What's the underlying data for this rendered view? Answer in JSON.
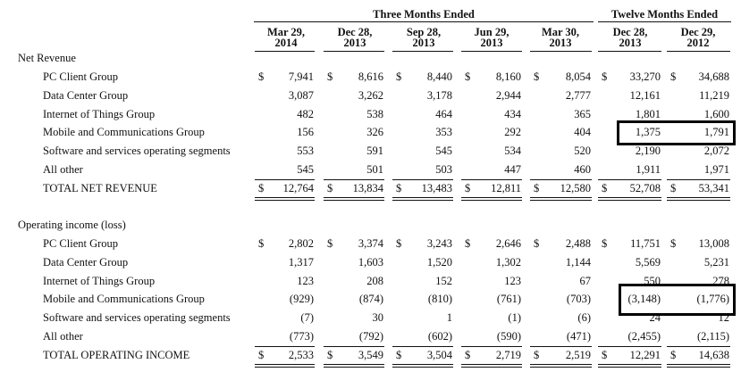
{
  "header": {
    "groups": [
      "Three Months Ended",
      "Twelve Months Ended"
    ],
    "columns": [
      [
        "Mar 29,",
        "2014"
      ],
      [
        "Dec 28,",
        "2013"
      ],
      [
        "Sep 28,",
        "2013"
      ],
      [
        "Jun 29,",
        "2013"
      ],
      [
        "Mar 30,",
        "2013"
      ],
      [
        "Dec 28,",
        "2013"
      ],
      [
        "Dec 29,",
        "2012"
      ]
    ]
  },
  "currency_symbol": "$",
  "sections": [
    {
      "title": "Net Revenue",
      "rows": [
        {
          "label": "PC Client Group",
          "show_currency": true,
          "values": [
            "7,941",
            "8,616",
            "8,440",
            "8,160",
            "8,054",
            "33,270",
            "34,688"
          ]
        },
        {
          "label": "Data Center Group",
          "show_currency": false,
          "values": [
            "3,087",
            "3,262",
            "3,178",
            "2,944",
            "2,777",
            "12,161",
            "11,219"
          ]
        },
        {
          "label": "Internet of Things Group",
          "show_currency": false,
          "values": [
            "482",
            "538",
            "464",
            "434",
            "365",
            "1,801",
            "1,600"
          ]
        },
        {
          "label": "Mobile and Communications Group",
          "show_currency": false,
          "values": [
            "156",
            "326",
            "353",
            "292",
            "404",
            "1,375",
            "1,791"
          ]
        },
        {
          "label": "Software and services operating segments",
          "show_currency": false,
          "values": [
            "553",
            "591",
            "545",
            "534",
            "520",
            "2,190",
            "2,072"
          ]
        },
        {
          "label": "All other",
          "show_currency": false,
          "values": [
            "545",
            "501",
            "503",
            "447",
            "460",
            "1,911",
            "1,971"
          ]
        },
        {
          "label": "TOTAL NET REVENUE",
          "show_currency": true,
          "values": [
            "12,764",
            "13,834",
            "13,483",
            "12,811",
            "12,580",
            "52,708",
            "53,341"
          ]
        }
      ]
    },
    {
      "title": "Operating income (loss)",
      "rows": [
        {
          "label": "PC Client Group",
          "show_currency": true,
          "values": [
            "2,802",
            "3,374",
            "3,243",
            "2,646",
            "2,488",
            "11,751",
            "13,008"
          ]
        },
        {
          "label": "Data Center Group",
          "show_currency": false,
          "values": [
            "1,317",
            "1,603",
            "1,520",
            "1,302",
            "1,144",
            "5,569",
            "5,231"
          ]
        },
        {
          "label": "Internet of Things Group",
          "show_currency": false,
          "values": [
            "123",
            "208",
            "152",
            "123",
            "67",
            "550",
            "278"
          ]
        },
        {
          "label": "Mobile and Communications Group",
          "show_currency": false,
          "values": [
            "(929)",
            "(874)",
            "(810)",
            "(761)",
            "(703)",
            "(3,148)",
            "(1,776)"
          ]
        },
        {
          "label": "Software and services operating segments",
          "show_currency": false,
          "values": [
            "(7)",
            "30",
            "1",
            "(1)",
            "(6)",
            "24",
            "12"
          ]
        },
        {
          "label": "All other",
          "show_currency": false,
          "values": [
            "(773)",
            "(792)",
            "(602)",
            "(590)",
            "(471)",
            "(2,455)",
            "(2,115)"
          ]
        },
        {
          "label": "TOTAL OPERATING INCOME",
          "show_currency": true,
          "values": [
            "2,533",
            "3,549",
            "3,504",
            "2,719",
            "2,519",
            "12,291",
            "14,638"
          ]
        }
      ]
    }
  ]
}
